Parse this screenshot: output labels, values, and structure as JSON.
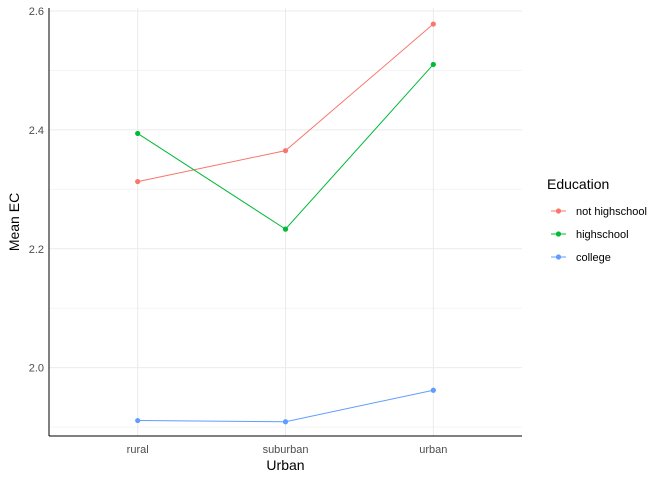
{
  "chart_data": {
    "type": "line",
    "categories": [
      "rural",
      "suburban",
      "urban"
    ],
    "series": [
      {
        "name": "not highschool",
        "values": [
          2.313,
          2.365,
          2.578
        ],
        "color": "#F8766D"
      },
      {
        "name": "highschool",
        "values": [
          2.394,
          2.233,
          2.51
        ],
        "color": "#00BA38"
      },
      {
        "name": "college",
        "values": [
          1.911,
          1.909,
          1.962
        ],
        "color": "#619CFF"
      }
    ],
    "xlabel": "Urban",
    "ylabel": "Mean EC",
    "ylim": [
      1.885,
      2.605
    ],
    "yticks": [
      "2.0",
      "2.2",
      "2.4",
      "2.6"
    ],
    "ytick_values": [
      2.0,
      2.2,
      2.4,
      2.6
    ],
    "legend_title": "Education",
    "legend_position": "right",
    "grid": true
  }
}
